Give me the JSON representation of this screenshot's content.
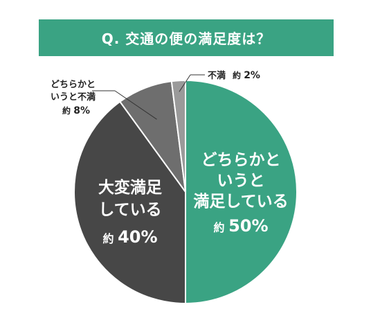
{
  "chart_data": {
    "type": "pie",
    "title": "Q. 交通の便の満足度は？",
    "slices": [
      {
        "name": "どちらかというと満足している",
        "value": 50,
        "label_lines": [
          "どちらかと",
          "いうと",
          "満足している"
        ],
        "pct_prefix": "約",
        "pct_value": "50%",
        "color": "#3aa383"
      },
      {
        "name": "大変満足している",
        "value": 40,
        "label_lines": [
          "大変満足",
          "している"
        ],
        "pct_prefix": "約",
        "pct_value": "40%",
        "color": "#474747"
      },
      {
        "name": "どちらかというと不満",
        "value": 8,
        "label_lines": [
          "どちらかと",
          "いうと不満"
        ],
        "pct_prefix": "約",
        "pct_value": "8%",
        "color": "#6e6e6e"
      },
      {
        "name": "不満",
        "value": 2,
        "label_lines": [
          "不満"
        ],
        "pct_prefix": "約",
        "pct_value": "2%",
        "color": "#9a9a9a"
      }
    ]
  },
  "colors": {
    "title_bg": "#3aa383",
    "title_text": "#ffffff",
    "border": "#ffffff"
  }
}
